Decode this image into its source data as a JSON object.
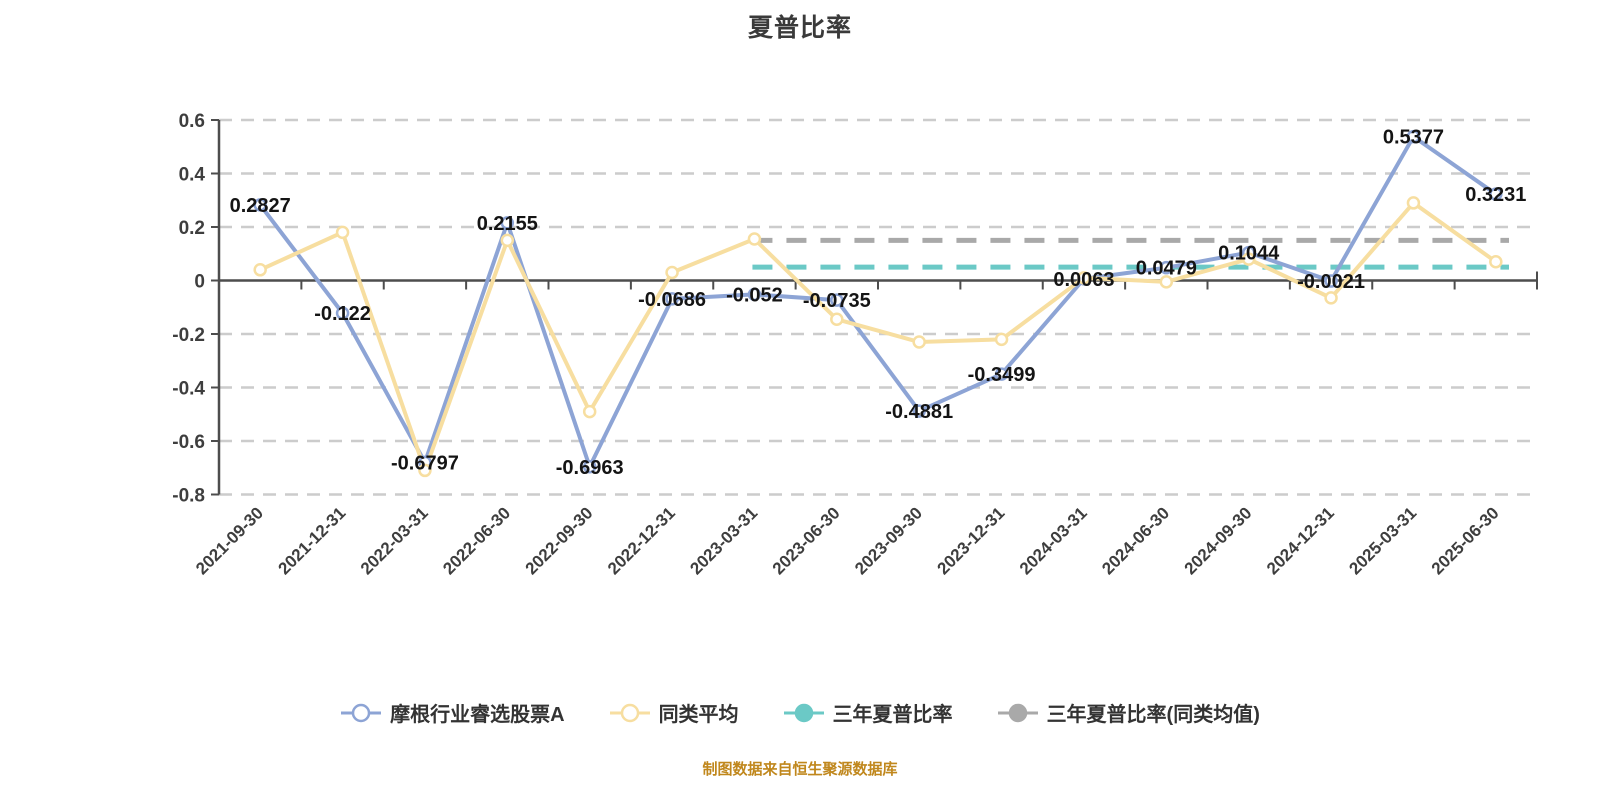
{
  "chart_title": "夏普比率",
  "source_note": "制图数据来自恒生聚源数据库",
  "colors": {
    "fund": "#8da4d5",
    "peer": "#f7dea0",
    "three_year": "#6bc9c6",
    "three_year_avg": "#a9a9a9",
    "grid": "#cccccc",
    "axis": "#4d4d4d",
    "data_label": "#141414",
    "axis_text": "#3e3e3e",
    "title_text": "#3a3a3a",
    "source_text": "#c0871c",
    "marker_fill": "#ffffff"
  },
  "chart_data": {
    "type": "line",
    "title": "夏普比率",
    "categories": [
      "2021-09-30",
      "2021-12-31",
      "2022-03-31",
      "2022-06-30",
      "2022-09-30",
      "2022-12-31",
      "2023-03-31",
      "2023-06-30",
      "2023-09-30",
      "2023-12-31",
      "2024-03-31",
      "2024-06-30",
      "2024-09-30",
      "2024-12-31",
      "2025-03-31",
      "2025-06-30"
    ],
    "y_ticks": [
      "0.6",
      "0.4",
      "0.2",
      "0",
      "-0.2",
      "-0.4",
      "-0.6",
      "-0.8"
    ],
    "y_tick_values": [
      0.6,
      0.4,
      0.2,
      0,
      -0.2,
      -0.4,
      -0.6,
      -0.8
    ],
    "ylim": [
      -0.8,
      0.6
    ],
    "grid": "horizontal-dashed",
    "legend_position": "bottom",
    "series": [
      {
        "name": "摩根行业睿选股票A",
        "kind": "line",
        "color": "#8da4d5",
        "values": [
          0.2827,
          -0.122,
          -0.6797,
          0.2155,
          -0.6963,
          -0.0686,
          -0.052,
          -0.0735,
          -0.4881,
          -0.3499,
          0.0063,
          0.0479,
          0.1044,
          -0.0021,
          0.5377,
          0.3231
        ],
        "labels": [
          "0.2827",
          "-0.122",
          "-0.6797",
          "0.2155",
          "-0.6963",
          "-0.0686",
          "-0.052",
          "-0.0735",
          "-0.4881",
          "-0.3499",
          "0.0063",
          "0.0479",
          "0.1044",
          "-0.0021",
          "0.5377",
          "0.3231"
        ]
      },
      {
        "name": "同类平均",
        "kind": "line",
        "color": "#f7dea0",
        "values": [
          0.04,
          0.18,
          -0.71,
          0.15,
          -0.49,
          0.03,
          0.155,
          -0.145,
          -0.23,
          -0.22,
          0.01,
          -0.005,
          0.08,
          -0.065,
          0.29,
          0.07
        ],
        "labels": null
      },
      {
        "name": "三年夏普比率",
        "kind": "constant-dashed",
        "color": "#6bc9c6",
        "value": 0.05,
        "start_category": "2023-03-31"
      },
      {
        "name": "三年夏普比率(同类均值)",
        "kind": "constant-dashed",
        "color": "#a9a9a9",
        "value": 0.15,
        "start_category": "2023-03-31"
      }
    ]
  },
  "legend": {
    "items": [
      {
        "label": "摩根行业睿选股票A",
        "color": "#8da4d5",
        "marker": "hollow-circle",
        "name": "fund"
      },
      {
        "label": "同类平均",
        "color": "#f7dea0",
        "marker": "hollow-circle",
        "name": "peer"
      },
      {
        "label": "三年夏普比率",
        "color": "#6bc9c6",
        "marker": "filled-circle",
        "name": "three-year"
      },
      {
        "label": "三年夏普比率(同类均值)",
        "color": "#a9a9a9",
        "marker": "filled-circle",
        "name": "three-year-avg"
      }
    ]
  }
}
